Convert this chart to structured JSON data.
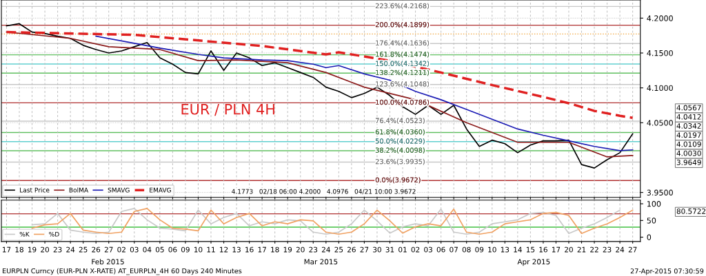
{
  "chart_data": [
    {
      "type": "line",
      "title": "EUR / PLN 4H",
      "categories": [
        "17",
        "18",
        "19",
        "20",
        "23",
        "24",
        "25",
        "26",
        "27",
        "02",
        "03",
        "04",
        "05",
        "06",
        "09",
        "10",
        "11",
        "12",
        "13",
        "16",
        "17",
        "18",
        "19",
        "20",
        "23",
        "24",
        "25",
        "26",
        "27",
        "30",
        "31",
        "01",
        "02",
        "03",
        "06",
        "07",
        "08",
        "09",
        "10",
        "13",
        "14",
        "15",
        "16",
        "17",
        "20",
        "21",
        "22",
        "23",
        "24",
        "27"
      ],
      "series": [
        {
          "name": "Last Price",
          "color": "#000000",
          "values": [
            4.189,
            4.192,
            4.18,
            4.178,
            4.174,
            4.171,
            4.161,
            4.155,
            4.15,
            4.153,
            4.159,
            4.165,
            4.143,
            4.134,
            4.122,
            4.12,
            4.153,
            4.125,
            4.15,
            4.143,
            4.132,
            4.136,
            4.129,
            4.122,
            4.115,
            4.101,
            4.095,
            4.086,
            4.092,
            4.101,
            4.089,
            4.073,
            4.062,
            4.075,
            4.062,
            4.075,
            4.041,
            4.016,
            4.025,
            4.02,
            4.007,
            4.018,
            4.024,
            4.024,
            4.025,
            3.99,
            3.985,
            3.997,
            4.007,
            4.034
          ]
        },
        {
          "name": "BolMA",
          "color": "#8b1a1a",
          "values": [
            4.18,
            null,
            null,
            null,
            null,
            4.171,
            null,
            null,
            4.159,
            null,
            null,
            null,
            4.155,
            null,
            null,
            4.139,
            null,
            null,
            4.14,
            null,
            null,
            null,
            4.136,
            null,
            null,
            4.122,
            null,
            null,
            4.101,
            null,
            null,
            null,
            4.083,
            null,
            null,
            null,
            4.05,
            null,
            null,
            null,
            4.022,
            null,
            null,
            null,
            4.022,
            null,
            null,
            4.001,
            null,
            4.003
          ]
        },
        {
          "name": "SMAVG",
          "color": "#1a1ab4",
          "values": [
            null,
            null,
            null,
            null,
            null,
            null,
            null,
            4.174,
            null,
            null,
            4.164,
            null,
            4.157,
            null,
            null,
            4.148,
            null,
            4.143,
            null,
            null,
            4.14,
            null,
            4.139,
            null,
            4.134,
            4.129,
            4.132,
            null,
            4.12,
            null,
            4.111,
            null,
            4.095,
            null,
            4.083,
            null,
            4.069,
            null,
            4.055,
            null,
            4.041,
            null,
            4.032,
            null,
            4.024,
            null,
            4.016,
            null,
            4.01,
            4.011
          ]
        },
        {
          "name": "EMAVG",
          "color": "#e02020",
          "line_style": "dashed",
          "values": [
            4.18,
            null,
            null,
            null,
            null,
            null,
            null,
            null,
            null,
            null,
            4.176,
            null,
            null,
            null,
            null,
            null,
            null,
            null,
            null,
            null,
            4.16,
            null,
            null,
            null,
            null,
            4.148,
            4.151,
            null,
            null,
            null,
            4.139,
            null,
            null,
            null,
            4.122,
            null,
            null,
            null,
            4.104,
            null,
            null,
            null,
            4.087,
            null,
            4.078,
            null,
            4.067,
            null,
            4.06,
            4.057
          ]
        }
      ],
      "ylim": [
        3.943,
        4.226
      ],
      "yticks": [
        {
          "value": 3.95,
          "label": "3.9500"
        },
        {
          "value": 4.05,
          "label": "4.0500"
        },
        {
          "value": 4.1,
          "label": "4.1000"
        },
        {
          "value": 4.15,
          "label": "4.1500"
        },
        {
          "value": 4.2,
          "label": "4.2000"
        }
      ],
      "ref_lines": [
        {
          "axis": "y",
          "value": 4.2168,
          "label": "223.6%(4.2168)",
          "color": "#c8c8c8"
        },
        {
          "axis": "y",
          "value": 4.1899,
          "label": "200.0%(4.1899)",
          "color": "#b03030"
        },
        {
          "axis": "y",
          "value": 4.1773,
          "color": "#f0a030",
          "line_style": "dotted"
        },
        {
          "axis": "y",
          "value": 4.1636,
          "label": "176.4%(4.1636)",
          "color": "#c8c8c8"
        },
        {
          "axis": "y",
          "value": 4.1474,
          "label": "161.8%(4.1474)",
          "color": "#60c060"
        },
        {
          "axis": "y",
          "value": 4.1342,
          "label": "150.0%(4.1342)",
          "color": "#60d0d0"
        },
        {
          "axis": "y",
          "value": 4.1211,
          "label": "138.2%(4.1211)",
          "color": "#60c060"
        },
        {
          "axis": "y",
          "value": 4.1048,
          "label": "123.6%(4.1048)",
          "color": "#c8c8c8"
        },
        {
          "axis": "y",
          "value": 4.0786,
          "label": "100.0%(4.0786)",
          "color": "#b03030"
        },
        {
          "axis": "y",
          "value": 4.0523,
          "label": "76.4%(4.0523)",
          "color": "#c8c8c8"
        },
        {
          "axis": "y",
          "value": 4.036,
          "label": "61.8%(4.0360)",
          "color": "#60c060"
        },
        {
          "axis": "y",
          "value": 4.0229,
          "label": "50.0%(4.0229)",
          "color": "#60d0d0"
        },
        {
          "axis": "y",
          "value": 4.0098,
          "label": "38.2%(4.0098)",
          "color": "#60c060"
        },
        {
          "axis": "y",
          "value": 3.9935,
          "label": "23.6%(3.9935)",
          "color": "#c8c8c8"
        },
        {
          "axis": "y",
          "value": 3.9672,
          "label": "0.0%(3.9672)",
          "color": "#b03030"
        }
      ],
      "annotations": [
        "4.1773   02/18 06:00 4.2000   4.0976   04/21 10:00 3.9672",
        "4.0567",
        "4.0412",
        "4.0342",
        "4.0197",
        "4.0109",
        "4.0030",
        "3.9649"
      ],
      "grid": true,
      "legend": "bottom left",
      "tick_labels": "y"
    },
    {
      "type": "line",
      "categories": [
        "17",
        "18",
        "19",
        "20",
        "23",
        "24",
        "25",
        "26",
        "27",
        "02",
        "03",
        "04",
        "05",
        "06",
        "09",
        "10",
        "11",
        "12",
        "13",
        "16",
        "17",
        "18",
        "19",
        "20",
        "23",
        "24",
        "25",
        "26",
        "27",
        "30",
        "31",
        "01",
        "02",
        "03",
        "06",
        "07",
        "08",
        "09",
        "10",
        "13",
        "14",
        "15",
        "16",
        "17",
        "20",
        "21",
        "22",
        "23",
        "24",
        "27"
      ],
      "series": [
        {
          "name": "%K",
          "color": "#c8c8c8",
          "values": [
            null,
            null,
            37,
            40,
            71,
            21,
            15,
            11,
            15,
            77,
            86,
            52,
            27,
            24,
            19,
            81,
            40,
            59,
            71,
            34,
            46,
            40,
            52,
            49,
            15,
            9,
            15,
            40,
            81,
            49,
            12,
            31,
            40,
            34,
            84,
            15,
            9,
            15,
            40,
            46,
            52,
            71,
            74,
            65,
            11,
            27,
            40,
            59,
            81,
            null
          ]
        },
        {
          "name": "%D",
          "color": "#f0a060",
          "values": [
            null,
            null,
            27,
            37,
            40,
            71,
            21,
            15,
            11,
            15,
            77,
            86,
            52,
            27,
            24,
            19,
            81,
            40,
            59,
            71,
            34,
            46,
            40,
            52,
            49,
            15,
            9,
            15,
            40,
            81,
            49,
            12,
            31,
            40,
            34,
            84,
            15,
            9,
            15,
            40,
            46,
            52,
            71,
            74,
            65,
            11,
            27,
            40,
            59,
            81
          ]
        }
      ],
      "ylim": [
        -13,
        111
      ],
      "yticks": [
        0,
        50,
        100
      ],
      "ref_lines": [
        {
          "axis": "y",
          "value": 70,
          "color": "#b03030"
        },
        {
          "axis": "y",
          "value": 30,
          "color": "#40c040"
        }
      ],
      "annotations": [
        "Feb 2015",
        "Mar 2015",
        "Apr 2015",
        "EURPLN Curncy (EUR-PLN X-RATE) AT_EURPLN_4H 60 Days 240 Minutes",
        "27-Apr-2015 07:30:59",
        "80.5722"
      ],
      "grid": "x",
      "legend": "bottom left"
    }
  ]
}
